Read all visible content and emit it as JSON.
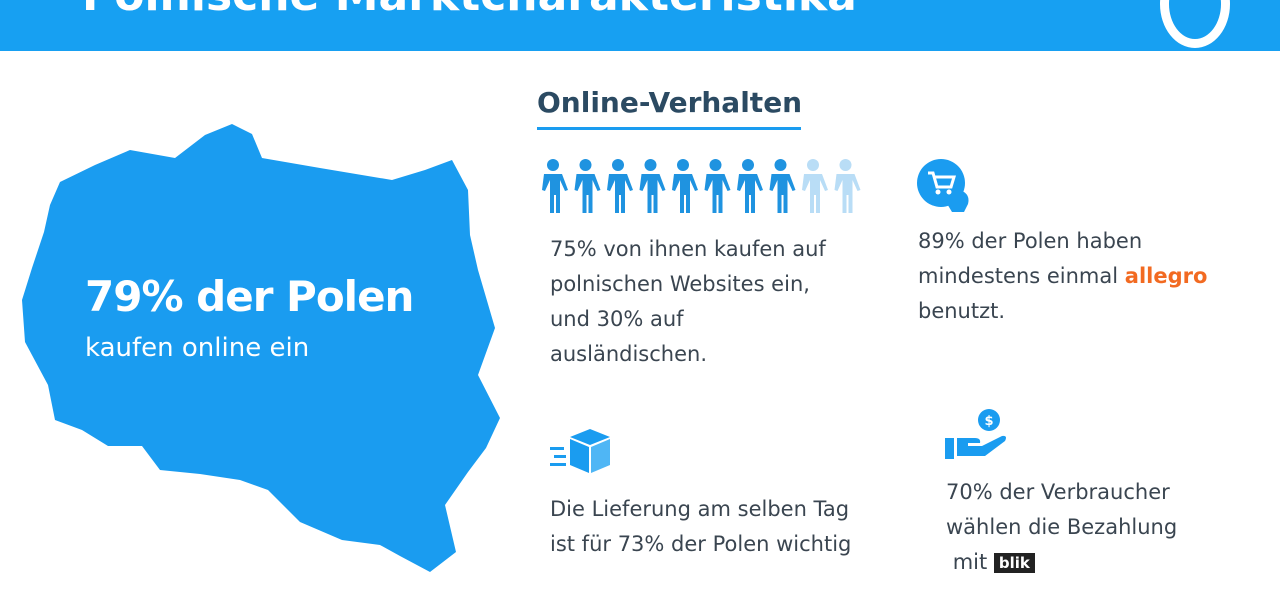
{
  "header": {
    "title": "Polnische Marktcharakteristika"
  },
  "map": {
    "headline": "79% der Polen",
    "subline": "kaufen online ein"
  },
  "section": {
    "title": "Online-Verhalten"
  },
  "people": {
    "total": 10,
    "highlighted": 8,
    "color": "#1f93e0",
    "light_color": "#b9ddf6"
  },
  "facts": [
    {
      "lines": [
        "75% von ihnen kaufen auf",
        "polnischen Websites ein,",
        "und 30% auf",
        "ausländischen."
      ]
    },
    {
      "line1": "89% der Polen haben",
      "line2": "mindestens einmal",
      "brand": "allegro",
      "line3": "benutzt."
    },
    {
      "lines": [
        "Die Lieferung am selben Tag",
        "ist für 73% der Polen wichtig"
      ]
    },
    {
      "line1": "70% der Verbraucher",
      "line2": "wählen die Bezahlung",
      "line3": "mit",
      "brand": "blik"
    }
  ],
  "colors": {
    "primary": "#17a0f2",
    "heading": "#2b4a62",
    "allegro": "#f26a21"
  }
}
